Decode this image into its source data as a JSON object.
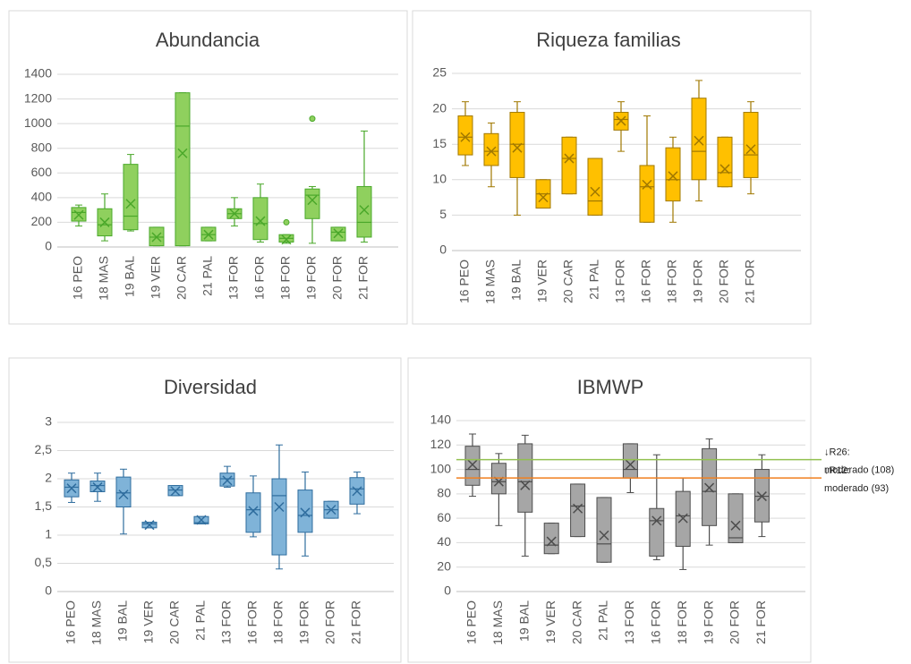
{
  "chart_data": [
    {
      "type": "box",
      "title": "Abundancia",
      "fill": "#8fd05e",
      "edge": "#4aa82a",
      "categories": [
        "16 PEO",
        "18 MAS",
        "19 BAL",
        "19 VER",
        "20 CAR",
        "21 PAL",
        "13 FOR",
        "16 FOR",
        "18 FOR",
        "19 FOR",
        "20 FOR",
        "21 FOR"
      ],
      "ylim": [
        0,
        1400
      ],
      "yticks": [
        0,
        200,
        400,
        600,
        800,
        1000,
        1200,
        1400
      ],
      "grid": true,
      "boxes": [
        {
          "min": 170,
          "q1": 210,
          "median": 280,
          "q3": 320,
          "max": 340,
          "mean": 260,
          "outliers": []
        },
        {
          "min": 50,
          "q1": 90,
          "median": 180,
          "q3": 310,
          "max": 430,
          "mean": 200,
          "outliers": []
        },
        {
          "min": 130,
          "q1": 140,
          "median": 250,
          "q3": 670,
          "max": 750,
          "mean": 350,
          "outliers": []
        },
        {
          "min": 10,
          "q1": 10,
          "median": 80,
          "q3": 160,
          "max": 160,
          "mean": 80,
          "outliers": []
        },
        {
          "min": 10,
          "q1": 10,
          "median": 980,
          "q3": 1250,
          "max": 1250,
          "mean": 760,
          "outliers": []
        },
        {
          "min": 50,
          "q1": 50,
          "median": 100,
          "q3": 160,
          "max": 160,
          "mean": 100,
          "outliers": []
        },
        {
          "min": 170,
          "q1": 230,
          "median": 270,
          "q3": 310,
          "max": 400,
          "mean": 270,
          "outliers": []
        },
        {
          "min": 40,
          "q1": 60,
          "median": 190,
          "q3": 400,
          "max": 510,
          "mean": 210,
          "outliers": []
        },
        {
          "min": 30,
          "q1": 40,
          "median": 70,
          "q3": 100,
          "max": 100,
          "mean": 60,
          "outliers": [
            200
          ]
        },
        {
          "min": 30,
          "q1": 230,
          "median": 420,
          "q3": 470,
          "max": 490,
          "mean": 380,
          "outliers": [
            1040
          ]
        },
        {
          "min": 50,
          "q1": 50,
          "median": 120,
          "q3": 160,
          "max": 160,
          "mean": 110,
          "outliers": []
        },
        {
          "min": 40,
          "q1": 80,
          "median": 200,
          "q3": 490,
          "max": 940,
          "mean": 300,
          "outliers": []
        }
      ]
    },
    {
      "type": "box",
      "title": "Riqueza familias",
      "fill": "#ffc000",
      "edge": "#a07800",
      "categories": [
        "16 PEO",
        "18 MAS",
        "19 BAL",
        "19 VER",
        "20 CAR",
        "21 PAL",
        "13 FOR",
        "16 FOR",
        "18 FOR",
        "19 FOR",
        "20 FOR",
        "21 FOR"
      ],
      "ylim": [
        0,
        25
      ],
      "yticks": [
        0,
        5,
        10,
        15,
        20,
        25
      ],
      "grid": true,
      "boxes": [
        {
          "min": 12,
          "q1": 13.5,
          "median": 16,
          "q3": 19,
          "max": 21,
          "mean": 16,
          "outliers": []
        },
        {
          "min": 9,
          "q1": 12,
          "median": 14,
          "q3": 16.5,
          "max": 18,
          "mean": 14,
          "outliers": []
        },
        {
          "min": 5,
          "q1": 10.3,
          "median": 15,
          "q3": 19.5,
          "max": 21,
          "mean": 14.5,
          "outliers": []
        },
        {
          "min": 6,
          "q1": 6,
          "median": 8,
          "q3": 10,
          "max": 10,
          "mean": 7.5,
          "outliers": []
        },
        {
          "min": 8,
          "q1": 8,
          "median": 13,
          "q3": 16,
          "max": 16,
          "mean": 13,
          "outliers": []
        },
        {
          "min": 5,
          "q1": 5,
          "median": 7,
          "q3": 13,
          "max": 13,
          "mean": 8.3,
          "outliers": []
        },
        {
          "min": 14,
          "q1": 17,
          "median": 18.5,
          "q3": 19.5,
          "max": 21,
          "mean": 18.3,
          "outliers": []
        },
        {
          "min": 4,
          "q1": 4,
          "median": 9,
          "q3": 12,
          "max": 19,
          "mean": 9.3,
          "outliers": []
        },
        {
          "min": 4,
          "q1": 7,
          "median": 10,
          "q3": 14.5,
          "max": 16,
          "mean": 10.5,
          "outliers": []
        },
        {
          "min": 7,
          "q1": 10,
          "median": 14,
          "q3": 21.5,
          "max": 24,
          "mean": 15.5,
          "outliers": []
        },
        {
          "min": 9,
          "q1": 9,
          "median": 11,
          "q3": 16,
          "max": 16,
          "mean": 11.5,
          "outliers": []
        },
        {
          "min": 8,
          "q1": 10.3,
          "median": 13.5,
          "q3": 19.5,
          "max": 21,
          "mean": 14.3,
          "outliers": []
        }
      ]
    },
    {
      "type": "box",
      "title": "Diversidad",
      "fill": "#7fb3d8",
      "edge": "#2f6d9e",
      "categories": [
        "16 PEO",
        "18 MAS",
        "19 BAL",
        "19 VER",
        "20 CAR",
        "21 PAL",
        "13 FOR",
        "16 FOR",
        "18 FOR",
        "19 FOR",
        "20 FOR",
        "21 FOR"
      ],
      "ylim": [
        0,
        3
      ],
      "yticks": [
        0,
        {
          "value": 0.5,
          "label": "0,5"
        },
        1,
        {
          "value": 1.5,
          "label": "1,5"
        },
        2,
        {
          "value": 2.5,
          "label": "2,5"
        },
        3
      ],
      "grid": true,
      "boxes": [
        {
          "min": 1.58,
          "q1": 1.68,
          "median": 1.85,
          "q3": 1.98,
          "max": 2.1,
          "mean": 1.83,
          "outliers": []
        },
        {
          "min": 1.6,
          "q1": 1.77,
          "median": 1.88,
          "q3": 1.96,
          "max": 2.1,
          "mean": 1.85,
          "outliers": []
        },
        {
          "min": 1.02,
          "q1": 1.5,
          "median": 1.75,
          "q3": 2.03,
          "max": 2.17,
          "mean": 1.72,
          "outliers": []
        },
        {
          "min": 1.13,
          "q1": 1.13,
          "median": 1.2,
          "q3": 1.23,
          "max": 1.23,
          "mean": 1.18,
          "outliers": []
        },
        {
          "min": 1.7,
          "q1": 1.7,
          "median": 1.8,
          "q3": 1.88,
          "max": 1.88,
          "mean": 1.78,
          "outliers": []
        },
        {
          "min": 1.2,
          "q1": 1.2,
          "median": 1.22,
          "q3": 1.33,
          "max": 1.33,
          "mean": 1.27,
          "outliers": []
        },
        {
          "min": 1.85,
          "q1": 1.87,
          "median": 2.0,
          "q3": 2.1,
          "max": 2.22,
          "mean": 1.97,
          "outliers": []
        },
        {
          "min": 0.97,
          "q1": 1.05,
          "median": 1.45,
          "q3": 1.75,
          "max": 2.05,
          "mean": 1.43,
          "outliers": []
        },
        {
          "min": 0.4,
          "q1": 0.65,
          "median": 1.7,
          "q3": 2.0,
          "max": 2.6,
          "mean": 1.5,
          "outliers": []
        },
        {
          "min": 0.63,
          "q1": 1.05,
          "median": 1.35,
          "q3": 1.8,
          "max": 2.12,
          "mean": 1.4,
          "outliers": []
        },
        {
          "min": 1.3,
          "q1": 1.3,
          "median": 1.45,
          "q3": 1.6,
          "max": 1.6,
          "mean": 1.45,
          "outliers": []
        },
        {
          "min": 1.38,
          "q1": 1.55,
          "median": 1.82,
          "q3": 2.02,
          "max": 2.12,
          "mean": 1.78,
          "outliers": []
        }
      ]
    },
    {
      "type": "box",
      "title": "IBMWP",
      "fill": "#a6a6a6",
      "edge": "#4d4d4d",
      "categories": [
        "16 PEO",
        "18 MAS",
        "19 BAL",
        "19 VER",
        "20 CAR",
        "21 PAL",
        "13 FOR",
        "16 FOR",
        "18 FOR",
        "19 FOR",
        "20 FOR",
        "21 FOR"
      ],
      "ylim": [
        0,
        140
      ],
      "yticks": [
        0,
        20,
        40,
        60,
        80,
        100,
        120,
        140
      ],
      "grid": true,
      "reference_lines": [
        {
          "value": 108,
          "color": "#92c050",
          "label_lines": [
            "↓R26:",
            "moderado (108)"
          ]
        },
        {
          "value": 93,
          "color": "#f07f1f",
          "label_lines": [
            "↓R12:",
            "moderado (93)"
          ]
        }
      ],
      "boxes": [
        {
          "min": 78,
          "q1": 87,
          "median": 100,
          "q3": 119,
          "max": 129,
          "mean": 104,
          "outliers": []
        },
        {
          "min": 54,
          "q1": 80,
          "median": 90,
          "q3": 105,
          "max": 113,
          "mean": 90,
          "outliers": []
        },
        {
          "min": 29,
          "q1": 65,
          "median": 90,
          "q3": 121,
          "max": 128,
          "mean": 87,
          "outliers": []
        },
        {
          "min": 31,
          "q1": 31,
          "median": 38,
          "q3": 56,
          "max": 56,
          "mean": 41,
          "outliers": []
        },
        {
          "min": 45,
          "q1": 45,
          "median": 70,
          "q3": 88,
          "max": 88,
          "mean": 68,
          "outliers": []
        },
        {
          "min": 24,
          "q1": 24,
          "median": 39,
          "q3": 77,
          "max": 77,
          "mean": 46,
          "outliers": []
        },
        {
          "min": 81,
          "q1": 93,
          "median": 100,
          "q3": 121,
          "max": 121,
          "mean": 104,
          "outliers": []
        },
        {
          "min": 26,
          "q1": 29,
          "median": 58,
          "q3": 68,
          "max": 112,
          "mean": 58,
          "outliers": []
        },
        {
          "min": 18,
          "q1": 37,
          "median": 62,
          "q3": 82,
          "max": 93,
          "mean": 60,
          "outliers": []
        },
        {
          "min": 38,
          "q1": 54,
          "median": 82,
          "q3": 117,
          "max": 125,
          "mean": 85,
          "outliers": []
        },
        {
          "min": 40,
          "q1": 40,
          "median": 44,
          "q3": 80,
          "max": 80,
          "mean": 54,
          "outliers": []
        },
        {
          "min": 45,
          "q1": 57,
          "median": 78,
          "q3": 100,
          "max": 112,
          "mean": 78,
          "outliers": []
        }
      ]
    }
  ]
}
